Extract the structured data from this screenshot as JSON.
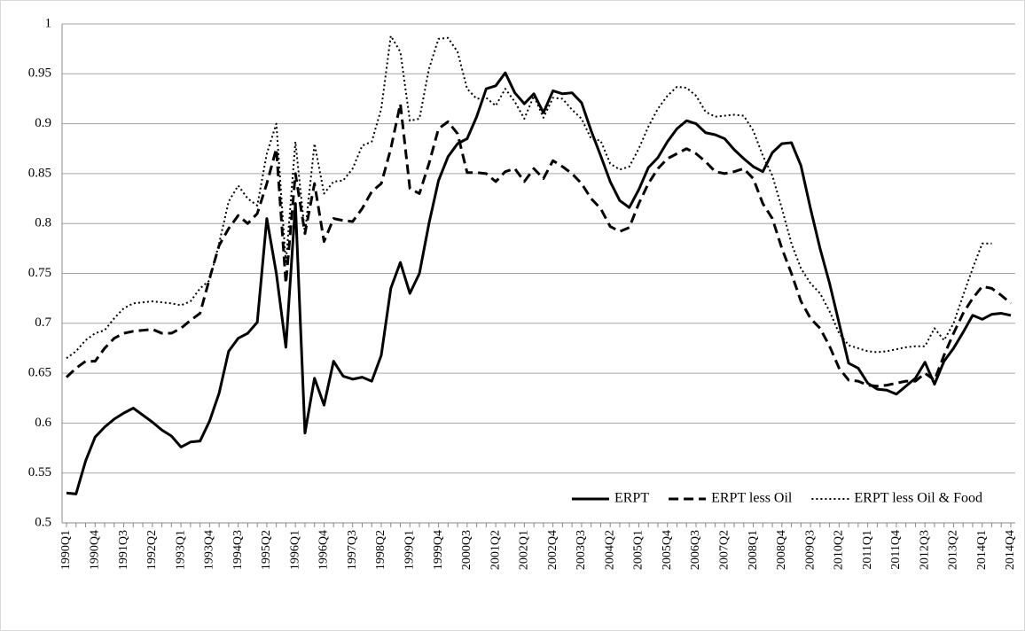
{
  "chart_data": {
    "type": "line",
    "categories": [
      "1990Q1",
      null,
      null,
      "1990Q4",
      null,
      null,
      "1991Q3",
      null,
      null,
      "1992Q2",
      null,
      null,
      "1993Q1",
      null,
      null,
      "1993Q4",
      null,
      null,
      "1994Q3",
      null,
      null,
      "1995Q2",
      null,
      null,
      "1996Q1",
      null,
      null,
      "1996Q4",
      null,
      null,
      "1997Q3",
      null,
      null,
      "1998Q2",
      null,
      null,
      "1999Q1",
      null,
      null,
      "1999Q4",
      null,
      null,
      "2000Q3",
      null,
      null,
      "2001Q2",
      null,
      null,
      "2002Q1",
      null,
      null,
      "2002Q4",
      null,
      null,
      "2003Q3",
      null,
      null,
      "2004Q2",
      null,
      null,
      "2005Q1",
      null,
      null,
      "2005Q4",
      null,
      null,
      "2006Q3",
      null,
      null,
      "2007Q2",
      null,
      null,
      "2008Q1",
      null,
      null,
      "2008Q4",
      null,
      null,
      "2009Q3",
      null,
      null,
      "2010Q2",
      null,
      null,
      "2011Q1",
      null,
      null,
      "2011Q4",
      null,
      null,
      "2012Q3",
      null,
      null,
      "2013Q2",
      null,
      null,
      "2014Q1",
      null,
      null,
      "2014Q4"
    ],
    "series": [
      {
        "name": "ERPT",
        "color": "#000000",
        "line_style": "solid",
        "values": [
          0.53,
          0.529,
          0.562,
          0.586,
          0.596,
          0.604,
          0.61,
          0.615,
          0.608,
          0.601,
          0.593,
          0.587,
          0.576,
          0.581,
          0.582,
          0.602,
          0.63,
          0.672,
          0.685,
          0.69,
          0.701,
          0.805,
          0.75,
          0.676,
          0.82,
          0.59,
          0.645,
          0.618,
          0.662,
          0.647,
          0.644,
          0.646,
          0.642,
          0.668,
          0.735,
          0.761,
          0.73,
          0.75,
          0.8,
          0.843,
          0.867,
          0.88,
          0.885,
          0.907,
          0.935,
          0.938,
          0.951,
          0.931,
          0.92,
          0.93,
          0.911,
          0.933,
          0.93,
          0.931,
          0.921,
          0.893,
          0.868,
          0.842,
          0.823,
          0.816,
          0.834,
          0.856,
          0.866,
          0.882,
          0.895,
          0.903,
          0.9,
          0.891,
          0.889,
          0.885,
          0.874,
          0.865,
          0.857,
          0.852,
          0.871,
          0.88,
          0.881,
          0.858,
          0.815,
          0.775,
          0.74,
          0.7,
          0.66,
          0.655,
          0.64,
          0.634,
          0.633,
          0.629,
          0.637,
          0.645,
          0.661,
          0.639,
          0.662,
          0.675,
          0.691,
          0.708,
          0.704,
          0.709,
          0.71,
          0.708
        ]
      },
      {
        "name": "ERPT less Oil",
        "color": "#000000",
        "line_style": "dashed",
        "values": [
          0.646,
          0.655,
          0.662,
          0.662,
          0.675,
          0.685,
          0.69,
          0.692,
          0.693,
          0.694,
          0.69,
          0.69,
          0.695,
          0.703,
          0.71,
          0.745,
          0.778,
          0.795,
          0.808,
          0.8,
          0.81,
          0.84,
          0.875,
          0.74,
          0.85,
          0.79,
          0.84,
          0.782,
          0.805,
          0.803,
          0.802,
          0.815,
          0.832,
          0.84,
          0.875,
          0.92,
          0.835,
          0.83,
          0.86,
          0.895,
          0.902,
          0.89,
          0.851,
          0.851,
          0.85,
          0.842,
          0.852,
          0.855,
          0.842,
          0.855,
          0.845,
          0.863,
          0.857,
          0.85,
          0.84,
          0.825,
          0.815,
          0.797,
          0.792,
          0.796,
          0.82,
          0.84,
          0.855,
          0.865,
          0.87,
          0.875,
          0.87,
          0.862,
          0.852,
          0.85,
          0.852,
          0.855,
          0.845,
          0.82,
          0.805,
          0.775,
          0.75,
          0.722,
          0.705,
          0.695,
          0.677,
          0.655,
          0.643,
          0.642,
          0.638,
          0.637,
          0.638,
          0.64,
          0.642,
          0.642,
          0.65,
          0.643,
          0.668,
          0.69,
          0.71,
          0.725,
          0.737,
          0.735,
          0.728,
          0.72
        ]
      },
      {
        "name": "ERPT less Oil & Food",
        "color": "#000000",
        "line_style": "dotted",
        "values": [
          0.665,
          0.672,
          0.683,
          0.69,
          0.693,
          0.705,
          0.715,
          0.72,
          0.721,
          0.722,
          0.721,
          0.72,
          0.718,
          0.722,
          0.735,
          0.743,
          0.78,
          0.822,
          0.838,
          0.825,
          0.818,
          0.87,
          0.9,
          0.76,
          0.882,
          0.79,
          0.88,
          0.83,
          0.842,
          0.843,
          0.855,
          0.878,
          0.882,
          0.915,
          0.988,
          0.972,
          0.903,
          0.905,
          0.955,
          0.985,
          0.986,
          0.972,
          0.935,
          0.925,
          0.926,
          0.918,
          0.935,
          0.922,
          0.905,
          0.928,
          0.906,
          0.926,
          0.925,
          0.914,
          0.905,
          0.885,
          0.883,
          0.86,
          0.854,
          0.857,
          0.875,
          0.897,
          0.915,
          0.928,
          0.937,
          0.936,
          0.928,
          0.912,
          0.907,
          0.908,
          0.909,
          0.908,
          0.893,
          0.868,
          0.848,
          0.815,
          0.78,
          0.755,
          0.74,
          0.73,
          0.712,
          0.69,
          0.678,
          0.675,
          0.672,
          0.671,
          0.672,
          0.674,
          0.676,
          0.677,
          0.677,
          0.695,
          0.683,
          0.7,
          0.728,
          0.755,
          0.78,
          0.78,
          null,
          null
        ]
      }
    ],
    "ylim": [
      0.5,
      1
    ],
    "yticks": [
      0.5,
      0.55,
      0.6,
      0.65,
      0.7,
      0.75,
      0.8,
      0.85,
      0.9,
      0.95,
      1
    ],
    "grid": true,
    "legend": "lower right"
  }
}
